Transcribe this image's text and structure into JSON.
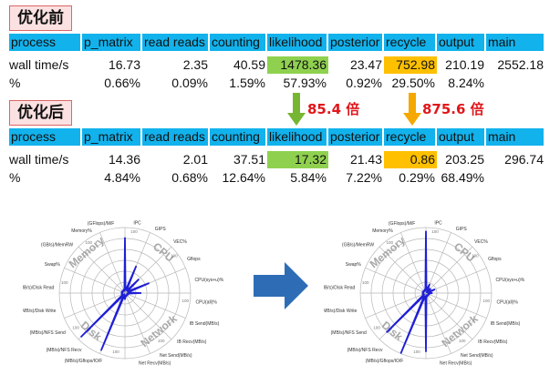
{
  "before": {
    "label": "优化前",
    "headers": [
      "process",
      "p_matrix",
      "read reads",
      "counting",
      "likelihood",
      "posterior",
      "recycle",
      "output",
      "main"
    ],
    "rows": [
      {
        "label": "wall time/s",
        "values": [
          "16.73",
          "2.35",
          "40.59",
          "1478.36",
          "23.47",
          "752.98",
          "210.19",
          "2552.18"
        ]
      },
      {
        "label": "%",
        "values": [
          "0.66%",
          "0.09%",
          "1.59%",
          "57.93%",
          "0.92%",
          "29.50%",
          "8.24%",
          ""
        ]
      }
    ]
  },
  "after": {
    "label": "优化后",
    "headers": [
      "process",
      "p_matrix",
      "read reads",
      "counting",
      "likelihood",
      "posterior",
      "recycle",
      "output",
      "main"
    ],
    "rows": [
      {
        "label": "wall time/s",
        "values": [
          "14.36",
          "2.01",
          "37.51",
          "17.32",
          "21.43",
          "0.86",
          "203.25",
          "296.74"
        ]
      },
      {
        "label": "%",
        "values": [
          "4.84%",
          "0.68%",
          "12.64%",
          "5.84%",
          "7.22%",
          "0.29%",
          "68.49%",
          ""
        ]
      }
    ]
  },
  "speedups": {
    "likelihood": "85.4 倍",
    "recycle": "875.6 倍"
  },
  "colors": {
    "header_bg": "#12b2ec",
    "likelihood_highlight": "#8fd14f",
    "recycle_highlight": "#ffc000",
    "speedup_text": "#e0161b",
    "arrow_green": "#77b633",
    "arrow_orange": "#f5a800",
    "transition_arrow": "#2e6db6",
    "radar_line": "#1f1fd6"
  },
  "radar": {
    "quadrants": [
      "Memory",
      "CPU",
      "Network",
      "Disk"
    ],
    "labels_right": [
      "IPC",
      "GIPS",
      "VEC%",
      "Gflops",
      "CPU(sys+u)%",
      "CPU(all)%",
      "IB Send(MB/s)",
      "IB Recv(MB/s)",
      "Net Send(MB/s)",
      "Net Recv(MB/s)"
    ],
    "labels_left": [
      "(GFlops)/M/F",
      "Memory%",
      "(GB/s)/MemRW",
      "Swap%",
      "(MB/s)/Disk Read",
      "(MB/s)/Disk Write",
      "(MB/s)/NFS Send",
      "(MB/s)/NFS Recv",
      "(MB/s)/Gflops/IO/F"
    ],
    "scale_label": "100",
    "before_spikes": [
      0.85,
      0.45,
      0.3,
      0.4,
      0.25,
      0.05,
      0.05,
      0.05,
      0.1,
      0.95,
      0.95,
      0.05,
      0.05,
      0.05,
      0.05,
      0.05
    ],
    "after_spikes": [
      0.95,
      0.15,
      0.1,
      0.15,
      0.1,
      0.05,
      0.05,
      0.05,
      0.9,
      1.0,
      0.85,
      0.05,
      0.05,
      0.05,
      0.05,
      0.05
    ]
  }
}
